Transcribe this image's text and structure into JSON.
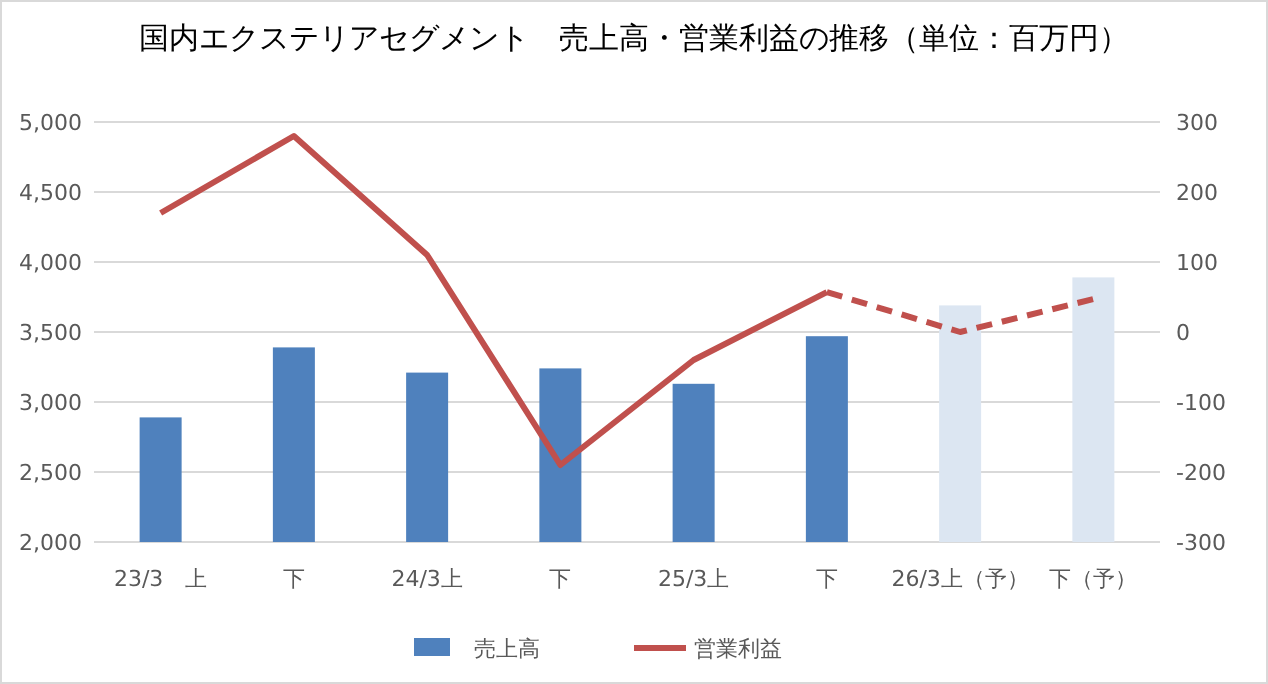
{
  "chart_data": {
    "type": "bar",
    "title": "国内エクステリアセグメント　売上高・営業利益の推移（単位：百万円）",
    "categories": [
      "23/3　上",
      "下",
      "24/3上",
      "下",
      "25/3上",
      "下",
      "26/3上（予）",
      "下（予）"
    ],
    "ylim": [
      2000,
      5000
    ],
    "yticks": [
      {
        "value": 2000,
        "label": "2,000"
      },
      {
        "value": 2500,
        "label": "2,500"
      },
      {
        "value": 3000,
        "label": "3,000"
      },
      {
        "value": 3500,
        "label": "3,500"
      },
      {
        "value": 4000,
        "label": "4,000"
      },
      {
        "value": 4500,
        "label": "4,500"
      },
      {
        "value": 5000,
        "label": "5,000"
      }
    ],
    "y2lim": [
      -300,
      300
    ],
    "y2ticks": [
      -300,
      -200,
      -100,
      0,
      100,
      200,
      300
    ],
    "grid": "y",
    "legend": "bottom",
    "series": [
      {
        "name": "売上高",
        "color": "#4f81bd",
        "colors": [
          "#4f81bd",
          "#4f81bd",
          "#4f81bd",
          "#4f81bd",
          "#4f81bd",
          "#4f81bd",
          "#dce6f2",
          "#dce6f2"
        ],
        "values": [
          2890,
          3390,
          3210,
          3240,
          3130,
          3470,
          3690,
          3890
        ]
      },
      {
        "name": "営業利益",
        "type": "line",
        "axis": "y2",
        "color": "#c0504d",
        "line_style": "solid",
        "values": [
          170,
          280,
          110,
          -190,
          -40,
          57,
          null,
          null
        ]
      },
      {
        "type": "line",
        "axis": "y2",
        "color": "#c0504d",
        "line_style": "dashed",
        "values": [
          null,
          null,
          null,
          null,
          null,
          57,
          0,
          47
        ]
      }
    ]
  }
}
